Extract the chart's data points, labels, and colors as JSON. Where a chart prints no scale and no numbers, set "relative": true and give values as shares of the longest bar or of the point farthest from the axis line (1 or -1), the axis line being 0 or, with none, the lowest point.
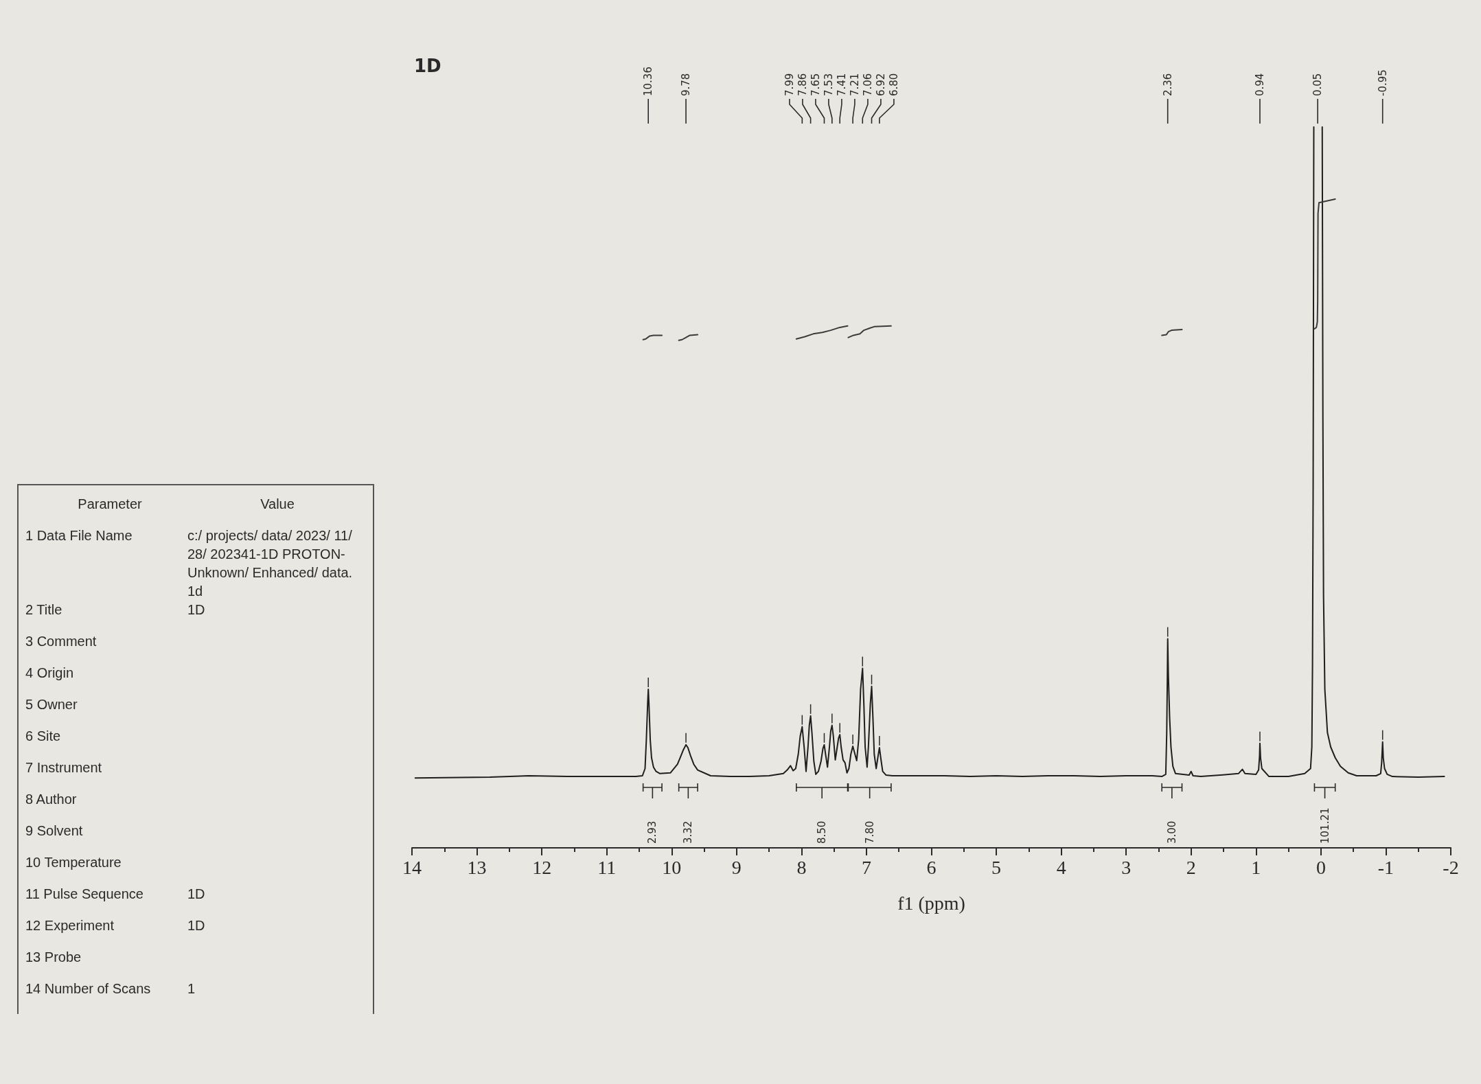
{
  "chart_data": [
    {
      "type": "line",
      "title": "1D",
      "xlabel": "f1 (ppm)",
      "relative": true,
      "xlim": [
        14,
        -2
      ],
      "xticks": [
        14,
        {
          "value": 13.5,
          "label": null
        },
        13,
        {
          "value": 12.5,
          "label": null
        },
        12,
        {
          "value": 11.5,
          "label": null
        },
        11,
        {
          "value": 10.5,
          "label": null
        },
        10,
        {
          "value": 9.5,
          "label": null
        },
        9,
        {
          "value": 8.5,
          "label": null
        },
        8,
        {
          "value": 7.5,
          "label": null
        },
        7,
        {
          "value": 6.5,
          "label": null
        },
        6,
        {
          "value": 5.5,
          "label": null
        },
        5,
        {
          "value": 4.5,
          "label": null
        },
        4,
        {
          "value": 3.5,
          "label": null
        },
        3,
        {
          "value": 2.5,
          "label": null
        },
        2,
        {
          "value": 1.5,
          "label": null
        },
        1,
        {
          "value": 0.5,
          "label": null
        },
        0,
        {
          "value": -0.5,
          "label": null
        },
        -1,
        {
          "value": -1.5,
          "label": null
        },
        -2
      ],
      "series": [
        {
          "color": "#1f1f1f",
          "x": [
            13.95,
            12.8,
            12.2,
            11.6,
            11.0,
            10.55,
            10.45,
            10.41,
            10.39,
            10.37,
            10.36,
            10.35,
            10.33,
            10.31,
            10.28,
            10.24,
            10.18,
            10.02,
            9.91,
            9.86,
            9.82,
            9.78,
            9.75,
            9.71,
            9.66,
            9.6,
            9.4,
            9.1,
            8.8,
            8.5,
            8.28,
            8.22,
            8.17,
            8.13,
            8.09,
            8.05,
            8.02,
            7.99,
            7.96,
            7.93,
            7.9,
            7.88,
            7.86,
            7.84,
            7.81,
            7.78,
            7.74,
            7.7,
            7.67,
            7.65,
            7.63,
            7.6,
            7.57,
            7.55,
            7.53,
            7.51,
            7.48,
            7.45,
            7.43,
            7.41,
            7.39,
            7.36,
            7.33,
            7.3,
            7.27,
            7.24,
            7.21,
            7.18,
            7.15,
            7.12,
            7.09,
            7.06,
            7.04,
            7.02,
            6.99,
            6.97,
            6.94,
            6.92,
            6.9,
            6.88,
            6.85,
            6.82,
            6.8,
            6.78,
            6.75,
            6.7,
            6.6,
            6.2,
            5.8,
            5.4,
            5.0,
            4.6,
            4.2,
            3.8,
            3.4,
            3.0,
            2.6,
            2.45,
            2.39,
            2.375,
            2.365,
            2.36,
            2.35,
            2.33,
            2.31,
            2.28,
            2.24,
            2.03,
            2.0,
            1.97,
            1.85,
            1.55,
            1.27,
            1.21,
            1.17,
            1.0,
            0.96,
            0.945,
            0.94,
            0.93,
            0.91,
            0.8,
            0.5,
            0.25,
            0.16,
            0.14,
            0.13,
            0.12,
            0.11,
            0.05,
            -0.02,
            -0.03,
            -0.04,
            -0.06,
            -0.1,
            -0.15,
            -0.22,
            -0.3,
            -0.42,
            -0.55,
            -0.85,
            -0.92,
            -0.935,
            -0.95,
            -0.96,
            -0.98,
            -1.02,
            -1.1,
            -1.5,
            -1.9
          ],
          "values": [
            0.097,
            0.098,
            0.1,
            0.099,
            0.099,
            0.099,
            0.1,
            0.11,
            0.15,
            0.2,
            0.22,
            0.2,
            0.15,
            0.125,
            0.112,
            0.106,
            0.103,
            0.104,
            0.116,
            0.127,
            0.136,
            0.143,
            0.139,
            0.128,
            0.116,
            0.108,
            0.1,
            0.099,
            0.099,
            0.1,
            0.103,
            0.108,
            0.114,
            0.107,
            0.11,
            0.13,
            0.155,
            0.168,
            0.14,
            0.106,
            0.14,
            0.17,
            0.183,
            0.16,
            0.12,
            0.102,
            0.106,
            0.12,
            0.138,
            0.143,
            0.13,
            0.112,
            0.14,
            0.162,
            0.17,
            0.155,
            0.122,
            0.14,
            0.152,
            0.157,
            0.14,
            0.122,
            0.118,
            0.104,
            0.11,
            0.13,
            0.141,
            0.131,
            0.121,
            0.15,
            0.22,
            0.249,
            0.2,
            0.14,
            0.112,
            0.14,
            0.2,
            0.224,
            0.18,
            0.13,
            0.11,
            0.128,
            0.139,
            0.125,
            0.106,
            0.101,
            0.1,
            0.1,
            0.1,
            0.099,
            0.1,
            0.099,
            0.1,
            0.1,
            0.099,
            0.1,
            0.1,
            0.099,
            0.102,
            0.16,
            0.24,
            0.29,
            0.24,
            0.18,
            0.14,
            0.113,
            0.103,
            0.101,
            0.106,
            0.1,
            0.099,
            0.101,
            0.103,
            0.109,
            0.103,
            0.102,
            0.108,
            0.128,
            0.145,
            0.125,
            0.11,
            0.099,
            0.099,
            0.103,
            0.11,
            0.14,
            0.25,
            0.5,
            1,
            null,
            1,
            0.6,
            0.35,
            0.22,
            0.16,
            0.14,
            0.125,
            0.113,
            0.104,
            0.1,
            0.1,
            0.103,
            0.118,
            0.147,
            0.125,
            0.11,
            0.102,
            0.099,
            0.098,
            0.099
          ]
        },
        {
          "color": "#3b3b3b",
          "x": [
            10.44,
            10.4,
            10.37,
            10.34,
            10.28,
            10.15,
            10.0,
            9.89,
            9.84,
            9.78,
            9.72,
            9.6,
            9.0,
            8.08,
            7.95,
            7.82,
            7.68,
            7.55,
            7.41,
            7.29,
            7.285,
            7.28,
            7.2,
            7.1,
            7.04,
            6.95,
            6.88,
            6.62,
            5.0,
            2.45,
            2.38,
            2.35,
            2.3,
            2.14,
            1.0,
            0.1,
            0.07,
            0.055,
            0.05,
            0.045,
            0.03,
            -0.22
          ],
          "values": [
            0.705,
            0.706,
            0.708,
            0.71,
            0.711,
            0.711,
            null,
            0.704,
            0.705,
            0.708,
            0.711,
            0.712,
            null,
            0.706,
            0.709,
            0.713,
            0.715,
            0.718,
            0.722,
            0.724,
            null,
            0.708,
            0.711,
            0.713,
            0.718,
            0.721,
            0.723,
            0.724,
            null,
            0.711,
            0.712,
            0.716,
            0.718,
            0.719,
            null,
            0.72,
            0.722,
            0.73,
            0.76,
            0.88,
            0.895,
            0.9
          ]
        }
      ],
      "annotations": [
        {
          "text": "10.36",
          "x": 10.36
        },
        {
          "text": "9.78",
          "x": 9.78
        },
        {
          "text": "7.99",
          "x": 7.99
        },
        {
          "text": "7.86",
          "x": 7.86
        },
        {
          "text": "7.65",
          "x": 7.65
        },
        {
          "text": "7.53",
          "x": 7.53
        },
        {
          "text": "7.41",
          "x": 7.41
        },
        {
          "text": "7.21",
          "x": 7.21
        },
        {
          "text": "7.06",
          "x": 7.06
        },
        {
          "text": "6.92",
          "x": 6.92
        },
        {
          "text": "6.80",
          "x": 6.8
        },
        {
          "text": "2.36",
          "x": 2.36
        },
        {
          "text": "0.94",
          "x": 0.94
        },
        {
          "text": "0.05",
          "x": 0.05
        },
        {
          "text": "-0.95",
          "x": -0.95
        },
        "2.93",
        "3.32",
        "8.50",
        "7.80",
        "3.00",
        "101.21"
      ]
    },
    {
      "type": "other",
      "categories": [
        "Parameter",
        "Value"
      ],
      "y_categories": [
        "1 Data File Name",
        "2 Title",
        "3 Comment",
        "4 Origin",
        "5 Owner",
        "6 Site",
        "7 Instrument",
        "8 Author",
        "9 Solvent",
        "10 Temperature",
        "11 Pulse Sequence",
        "12 Experiment",
        "13 Probe",
        "14 Number of Scans"
      ],
      "y2_categories": [
        "c:/ projects/ data/ 2023/ 11/ 28/ 202341-1D PROTON-Unknown/ Enhanced/ data. 1d",
        "1D",
        null,
        null,
        null,
        null,
        null,
        null,
        null,
        null,
        "1D",
        "1D",
        null,
        "1"
      ]
    }
  ]
}
